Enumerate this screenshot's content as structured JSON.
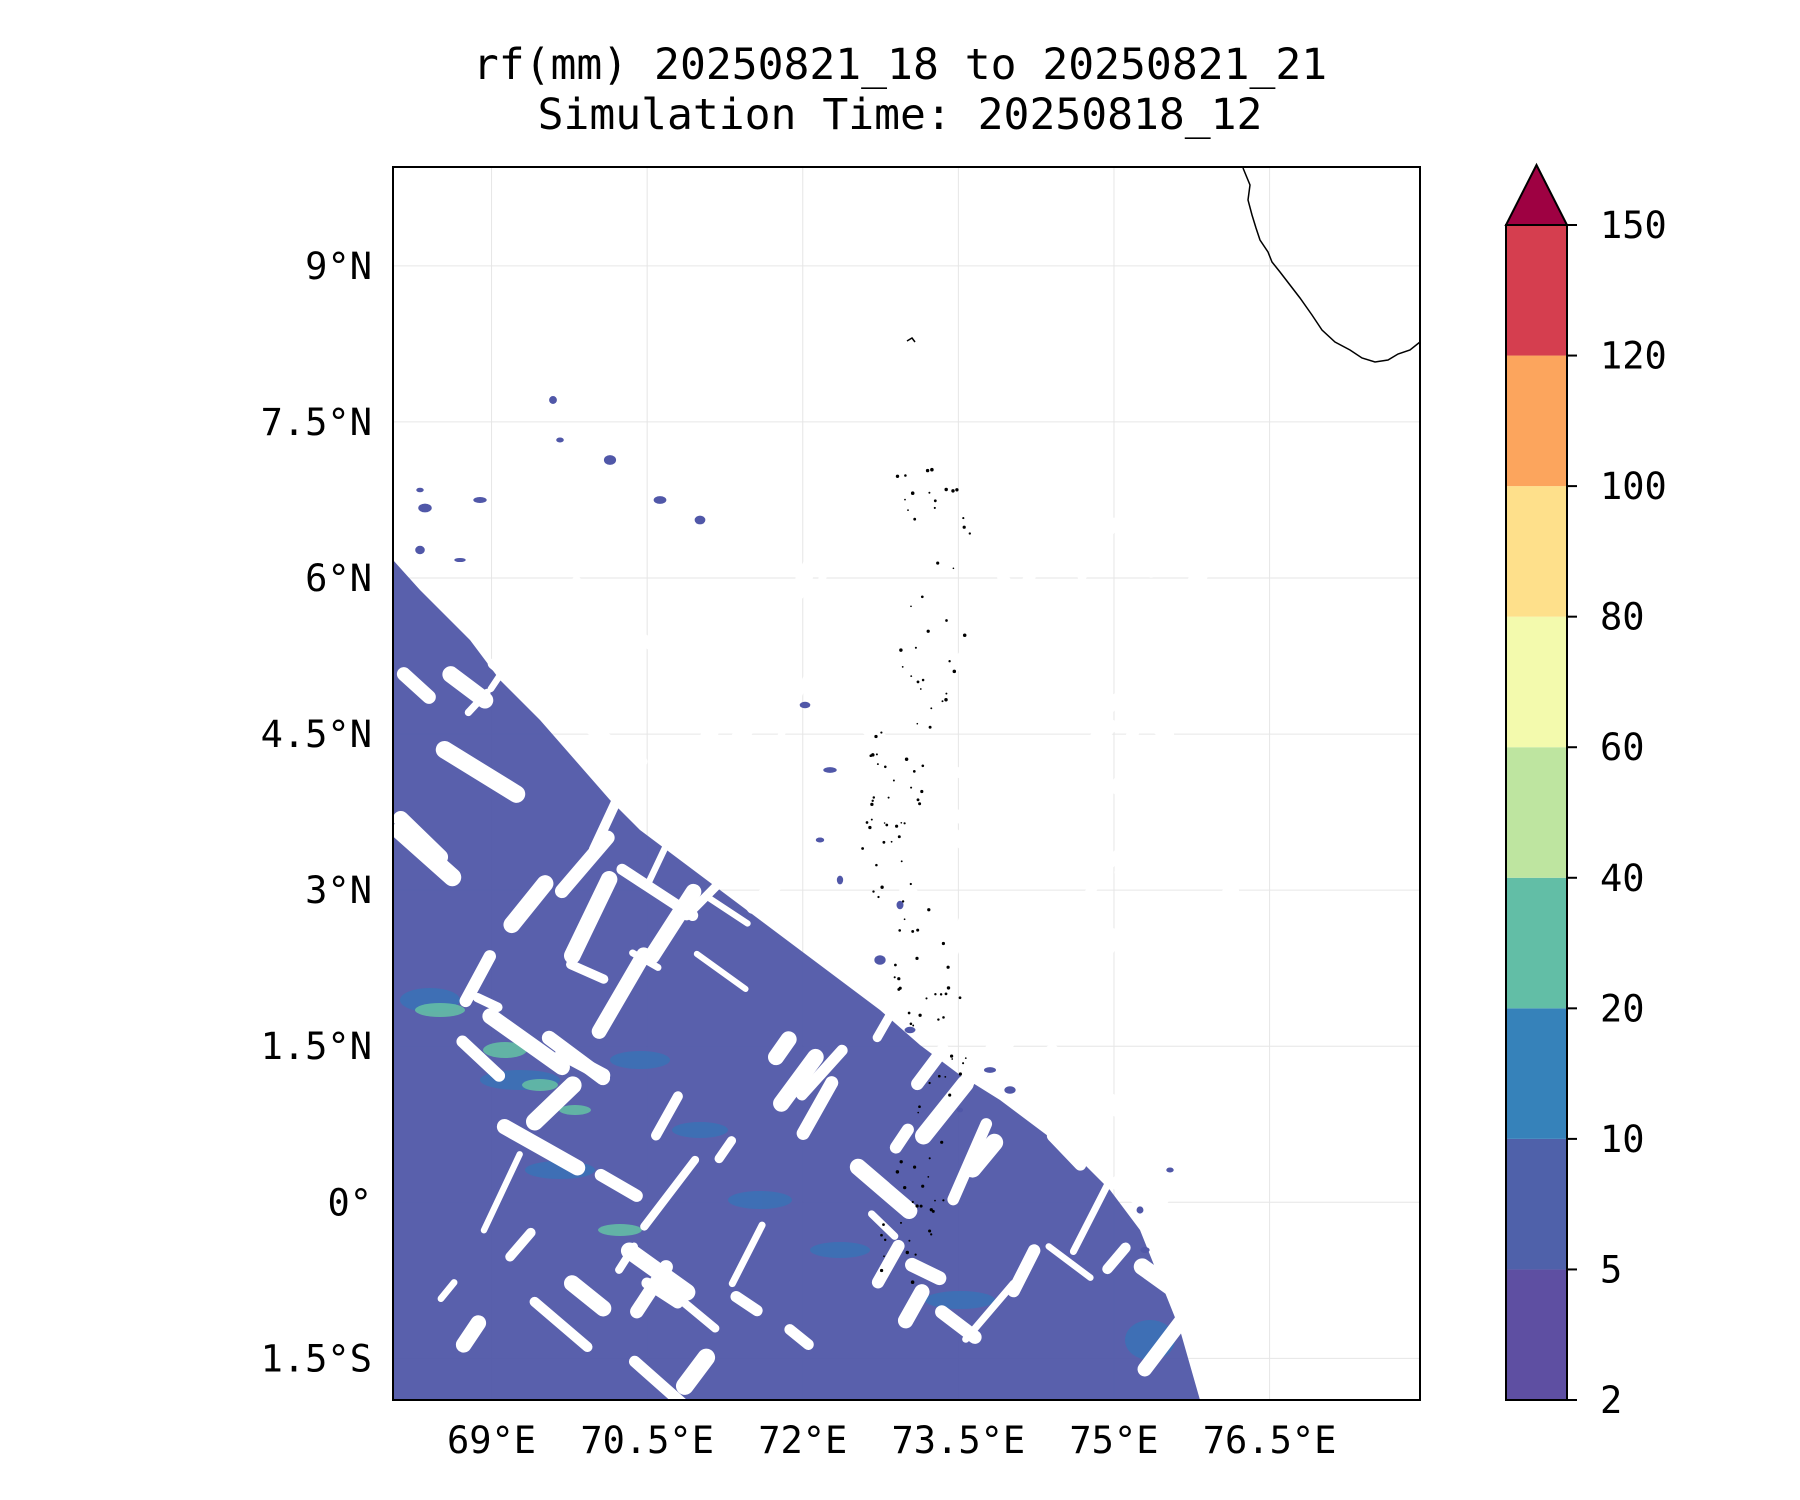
{
  "map": {
    "title_line1": "rf(mm) 20250821_18 to 20250821_21",
    "title_line2": "Simulation Time: 20250818_12",
    "lon_ticks": [
      {
        "label": "69°E",
        "value": 69.0
      },
      {
        "label": "70.5°E",
        "value": 70.5
      },
      {
        "label": "72°E",
        "value": 72.0
      },
      {
        "label": "73.5°E",
        "value": 73.5
      },
      {
        "label": "75°E",
        "value": 75.0
      },
      {
        "label": "76.5°E",
        "value": 76.5
      }
    ],
    "lat_ticks": [
      {
        "label": "9°N",
        "value": 9.0
      },
      {
        "label": "7.5°N",
        "value": 7.5
      },
      {
        "label": "6°N",
        "value": 6.0
      },
      {
        "label": "4.5°N",
        "value": 4.5
      },
      {
        "label": "3°N",
        "value": 3.0
      },
      {
        "label": "1.5°N",
        "value": 1.5
      },
      {
        "label": "0°",
        "value": 0.0
      },
      {
        "label": "1.5°S",
        "value": -1.5
      }
    ],
    "extent": {
      "lon_min": 68.05,
      "lon_max": 77.95,
      "lat_min": -1.9,
      "lat_max": 9.95
    }
  },
  "colorbar": {
    "levels": [
      "2",
      "5",
      "10",
      "20",
      "40",
      "60",
      "80",
      "100",
      "120",
      "150"
    ],
    "colors": [
      "#5e4fa2",
      "#4f61aa",
      "#3682ba",
      "#62bea6",
      "#bee5a0",
      "#f3faad",
      "#fee08b",
      "#fca55d",
      "#d53e4f"
    ],
    "extend_color": "#9e0142"
  },
  "rain_fields": {
    "color_low": "#5057a8",
    "color_mid": "#3a72b6",
    "color_high": "#63bca5"
  }
}
